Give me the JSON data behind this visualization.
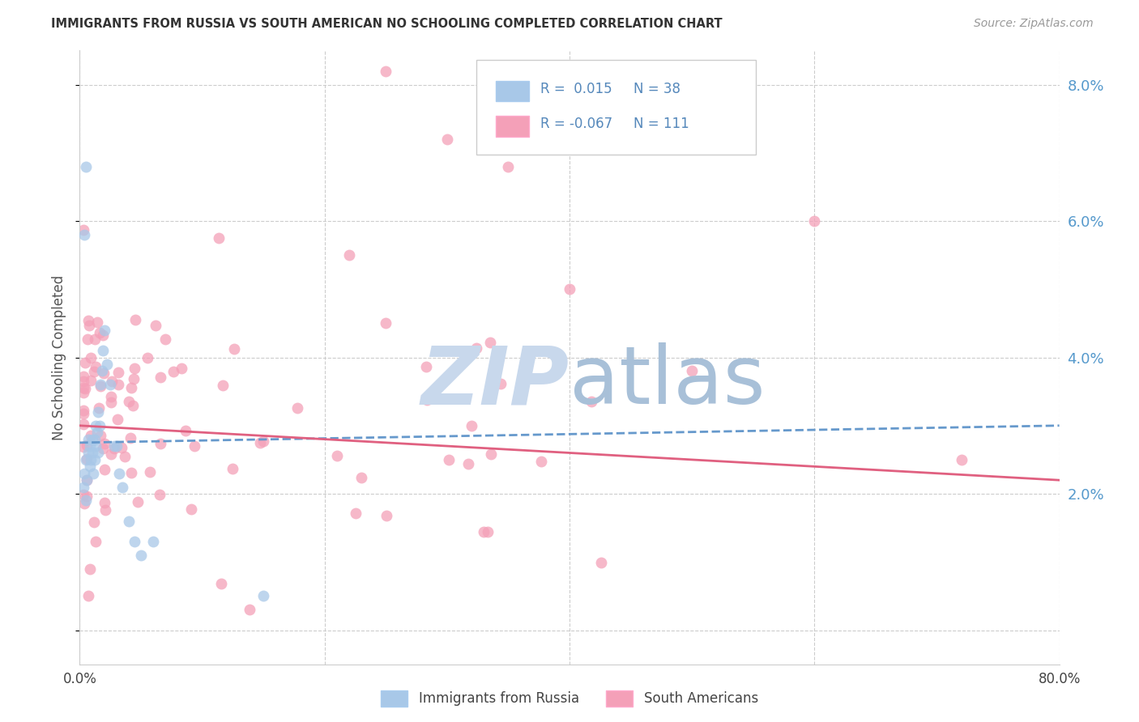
{
  "title": "IMMIGRANTS FROM RUSSIA VS SOUTH AMERICAN NO SCHOOLING COMPLETED CORRELATION CHART",
  "source": "Source: ZipAtlas.com",
  "ylabel": "No Schooling Completed",
  "xlim": [
    0,
    0.8
  ],
  "ylim": [
    -0.005,
    0.085
  ],
  "R_blue": 0.015,
  "N_blue": 38,
  "R_pink": -0.067,
  "N_pink": 111,
  "blue_color": "#A8C8E8",
  "pink_color": "#F4A0B8",
  "trend_blue_color": "#6699CC",
  "trend_pink_color": "#E06080",
  "watermark_zip_color": "#C8D8EC",
  "watermark_atlas_color": "#A8C0D8",
  "axis_label_color": "#5599CC",
  "legend_text_color": "#5588BB",
  "title_color": "#333333",
  "source_color": "#999999",
  "grid_color": "#CCCCCC",
  "spine_color": "#CCCCCC",
  "ylabel_color": "#555555"
}
